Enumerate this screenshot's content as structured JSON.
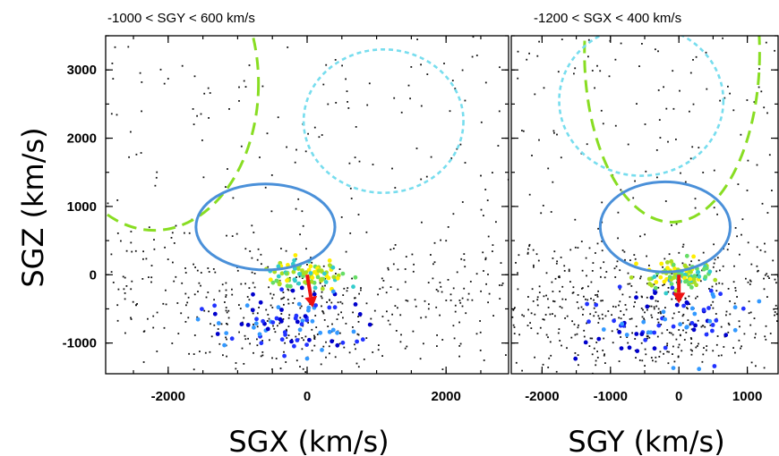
{
  "colors": {
    "dots": "#111111",
    "green_contour": "#88dd22",
    "cyan_contour": "#77ddee",
    "blue_contour": "#4a90d9",
    "arrow": "#ee1111",
    "point_palette": [
      "#0000cc",
      "#2233ff",
      "#3399ff",
      "#33cccc",
      "#66dd66",
      "#aadd22",
      "#ffee00",
      "#ff9900",
      "#cc3300",
      "#993311"
    ]
  },
  "shared_y_title": "SGZ (km/s)",
  "chart_data": [
    {
      "type": "scatter",
      "title": "-1000 < SGY < 600 km/s",
      "xlabel": "SGX (km/s)",
      "ylabel": "SGZ (km/s)",
      "xlim": [
        -2900,
        2900
      ],
      "ylim": [
        -1450,
        3500
      ],
      "xticks": [
        -2000,
        0,
        2000
      ],
      "xtick_labels": [
        "-2000",
        "0",
        "2000"
      ],
      "yticks": [
        3000,
        2000,
        1000,
        0,
        -1000
      ],
      "ytick_labels": [
        "3000",
        "2000",
        "1000",
        "0",
        "-1000"
      ],
      "contours": [
        {
          "name": "green",
          "style": "dashed",
          "cx": -2200,
          "cy": 2800,
          "rx": 1500,
          "ry": 2150
        },
        {
          "name": "cyan",
          "style": "dotted",
          "cx": 1100,
          "cy": 2250,
          "rx": 1150,
          "ry": 1050
        },
        {
          "name": "blue",
          "style": "solid",
          "cx": -600,
          "cy": 700,
          "rx": 1000,
          "ry": 630
        }
      ],
      "arrow": {
        "from": [
          0,
          0
        ],
        "to": [
          80,
          -480
        ]
      }
    },
    {
      "type": "scatter",
      "title": "-1200 < SGX < 400 km/s",
      "xlabel": "SGY (km/s)",
      "ylabel": "SGZ (km/s)",
      "xlim": [
        -2450,
        1450
      ],
      "ylim": [
        -1450,
        3500
      ],
      "xticks": [
        -2000,
        -1000,
        0,
        1000
      ],
      "xtick_labels": [
        "-2000",
        "-1000",
        "0",
        "1000"
      ],
      "yticks": [
        3000,
        2000,
        1000,
        0,
        -1000
      ],
      "ytick_labels": [
        "",
        "",
        "",
        "",
        ""
      ],
      "contours": [
        {
          "name": "green",
          "style": "dashed",
          "cx": -100,
          "cy": 3250,
          "rx": 1280,
          "ry": 2480
        },
        {
          "name": "cyan",
          "style": "dotted",
          "cx": -550,
          "cy": 2550,
          "rx": 1200,
          "ry": 1100
        },
        {
          "name": "blue",
          "style": "solid",
          "cx": -200,
          "cy": 700,
          "rx": 950,
          "ry": 660
        }
      ],
      "arrow": {
        "from": [
          0,
          0
        ],
        "to": [
          0,
          -420
        ]
      }
    }
  ]
}
